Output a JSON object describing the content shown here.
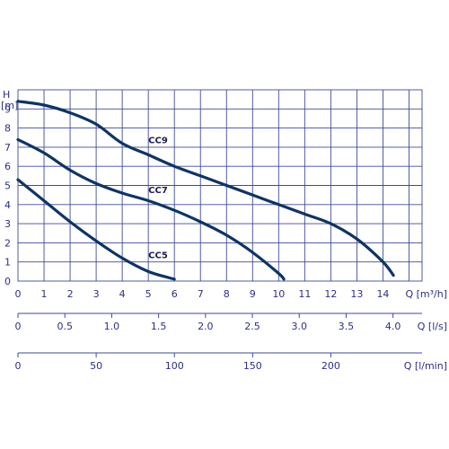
{
  "chart_data": {
    "type": "line",
    "y_axis": {
      "label_line1": "H",
      "label_line2": "[m]",
      "range": [
        0,
        10
      ],
      "ticks": [
        "0",
        "1",
        "2",
        "3",
        "4",
        "5",
        "6",
        "7",
        "8",
        "9"
      ]
    },
    "x_axes": [
      {
        "unit": "Q [m³/h]",
        "range": [
          0,
          15.5
        ],
        "ticks": [
          0,
          1,
          2,
          3,
          4,
          5,
          6,
          7,
          8,
          9,
          10,
          11,
          12,
          13,
          14
        ],
        "tick_labels": [
          "0",
          "1",
          "2",
          "3",
          "4",
          "5",
          "6",
          "7",
          "8",
          "9",
          "10",
          "11",
          "12",
          "13",
          "14"
        ]
      },
      {
        "unit": "Q [l/s]",
        "range": [
          0,
          4.31
        ],
        "ticks": [
          0,
          0.5,
          1.0,
          1.5,
          2.0,
          2.5,
          3.0,
          3.5,
          4.0
        ],
        "tick_labels": [
          "0",
          "0.5",
          "1.0",
          "1.5",
          "2.0",
          "2.5",
          "3.0",
          "3.5",
          "4.0"
        ]
      },
      {
        "unit": "Q [l/min]",
        "range": [
          0,
          258.3
        ],
        "ticks": [
          0,
          50,
          100,
          150,
          200
        ],
        "tick_labels": [
          "0",
          "50",
          "100",
          "150",
          "200"
        ]
      }
    ],
    "grid": true,
    "series": [
      {
        "name": "CC9",
        "x": [
          0,
          1,
          2,
          3,
          4,
          5,
          6,
          7,
          8,
          9,
          10,
          11,
          12,
          13,
          14,
          14.4
        ],
        "y": [
          9.4,
          9.2,
          8.8,
          8.2,
          7.2,
          6.6,
          6.0,
          5.5,
          5.0,
          4.5,
          4.0,
          3.5,
          3.0,
          2.2,
          1.0,
          0.3
        ]
      },
      {
        "name": "CC7",
        "x": [
          0,
          1,
          2,
          3,
          4,
          5,
          6,
          7,
          8,
          9,
          10,
          10.2
        ],
        "y": [
          7.4,
          6.7,
          5.8,
          5.1,
          4.6,
          4.2,
          3.7,
          3.1,
          2.4,
          1.5,
          0.4,
          0.1
        ]
      },
      {
        "name": "CC5",
        "x": [
          0,
          1,
          2,
          3,
          4,
          5,
          6
        ],
        "y": [
          5.3,
          4.2,
          3.1,
          2.1,
          1.2,
          0.5,
          0.1
        ]
      }
    ],
    "series_label_positions": {
      "CC9": [
        5.0,
        7.2
      ],
      "CC7": [
        5.0,
        4.6
      ],
      "CC5": [
        5.0,
        1.2
      ]
    }
  }
}
